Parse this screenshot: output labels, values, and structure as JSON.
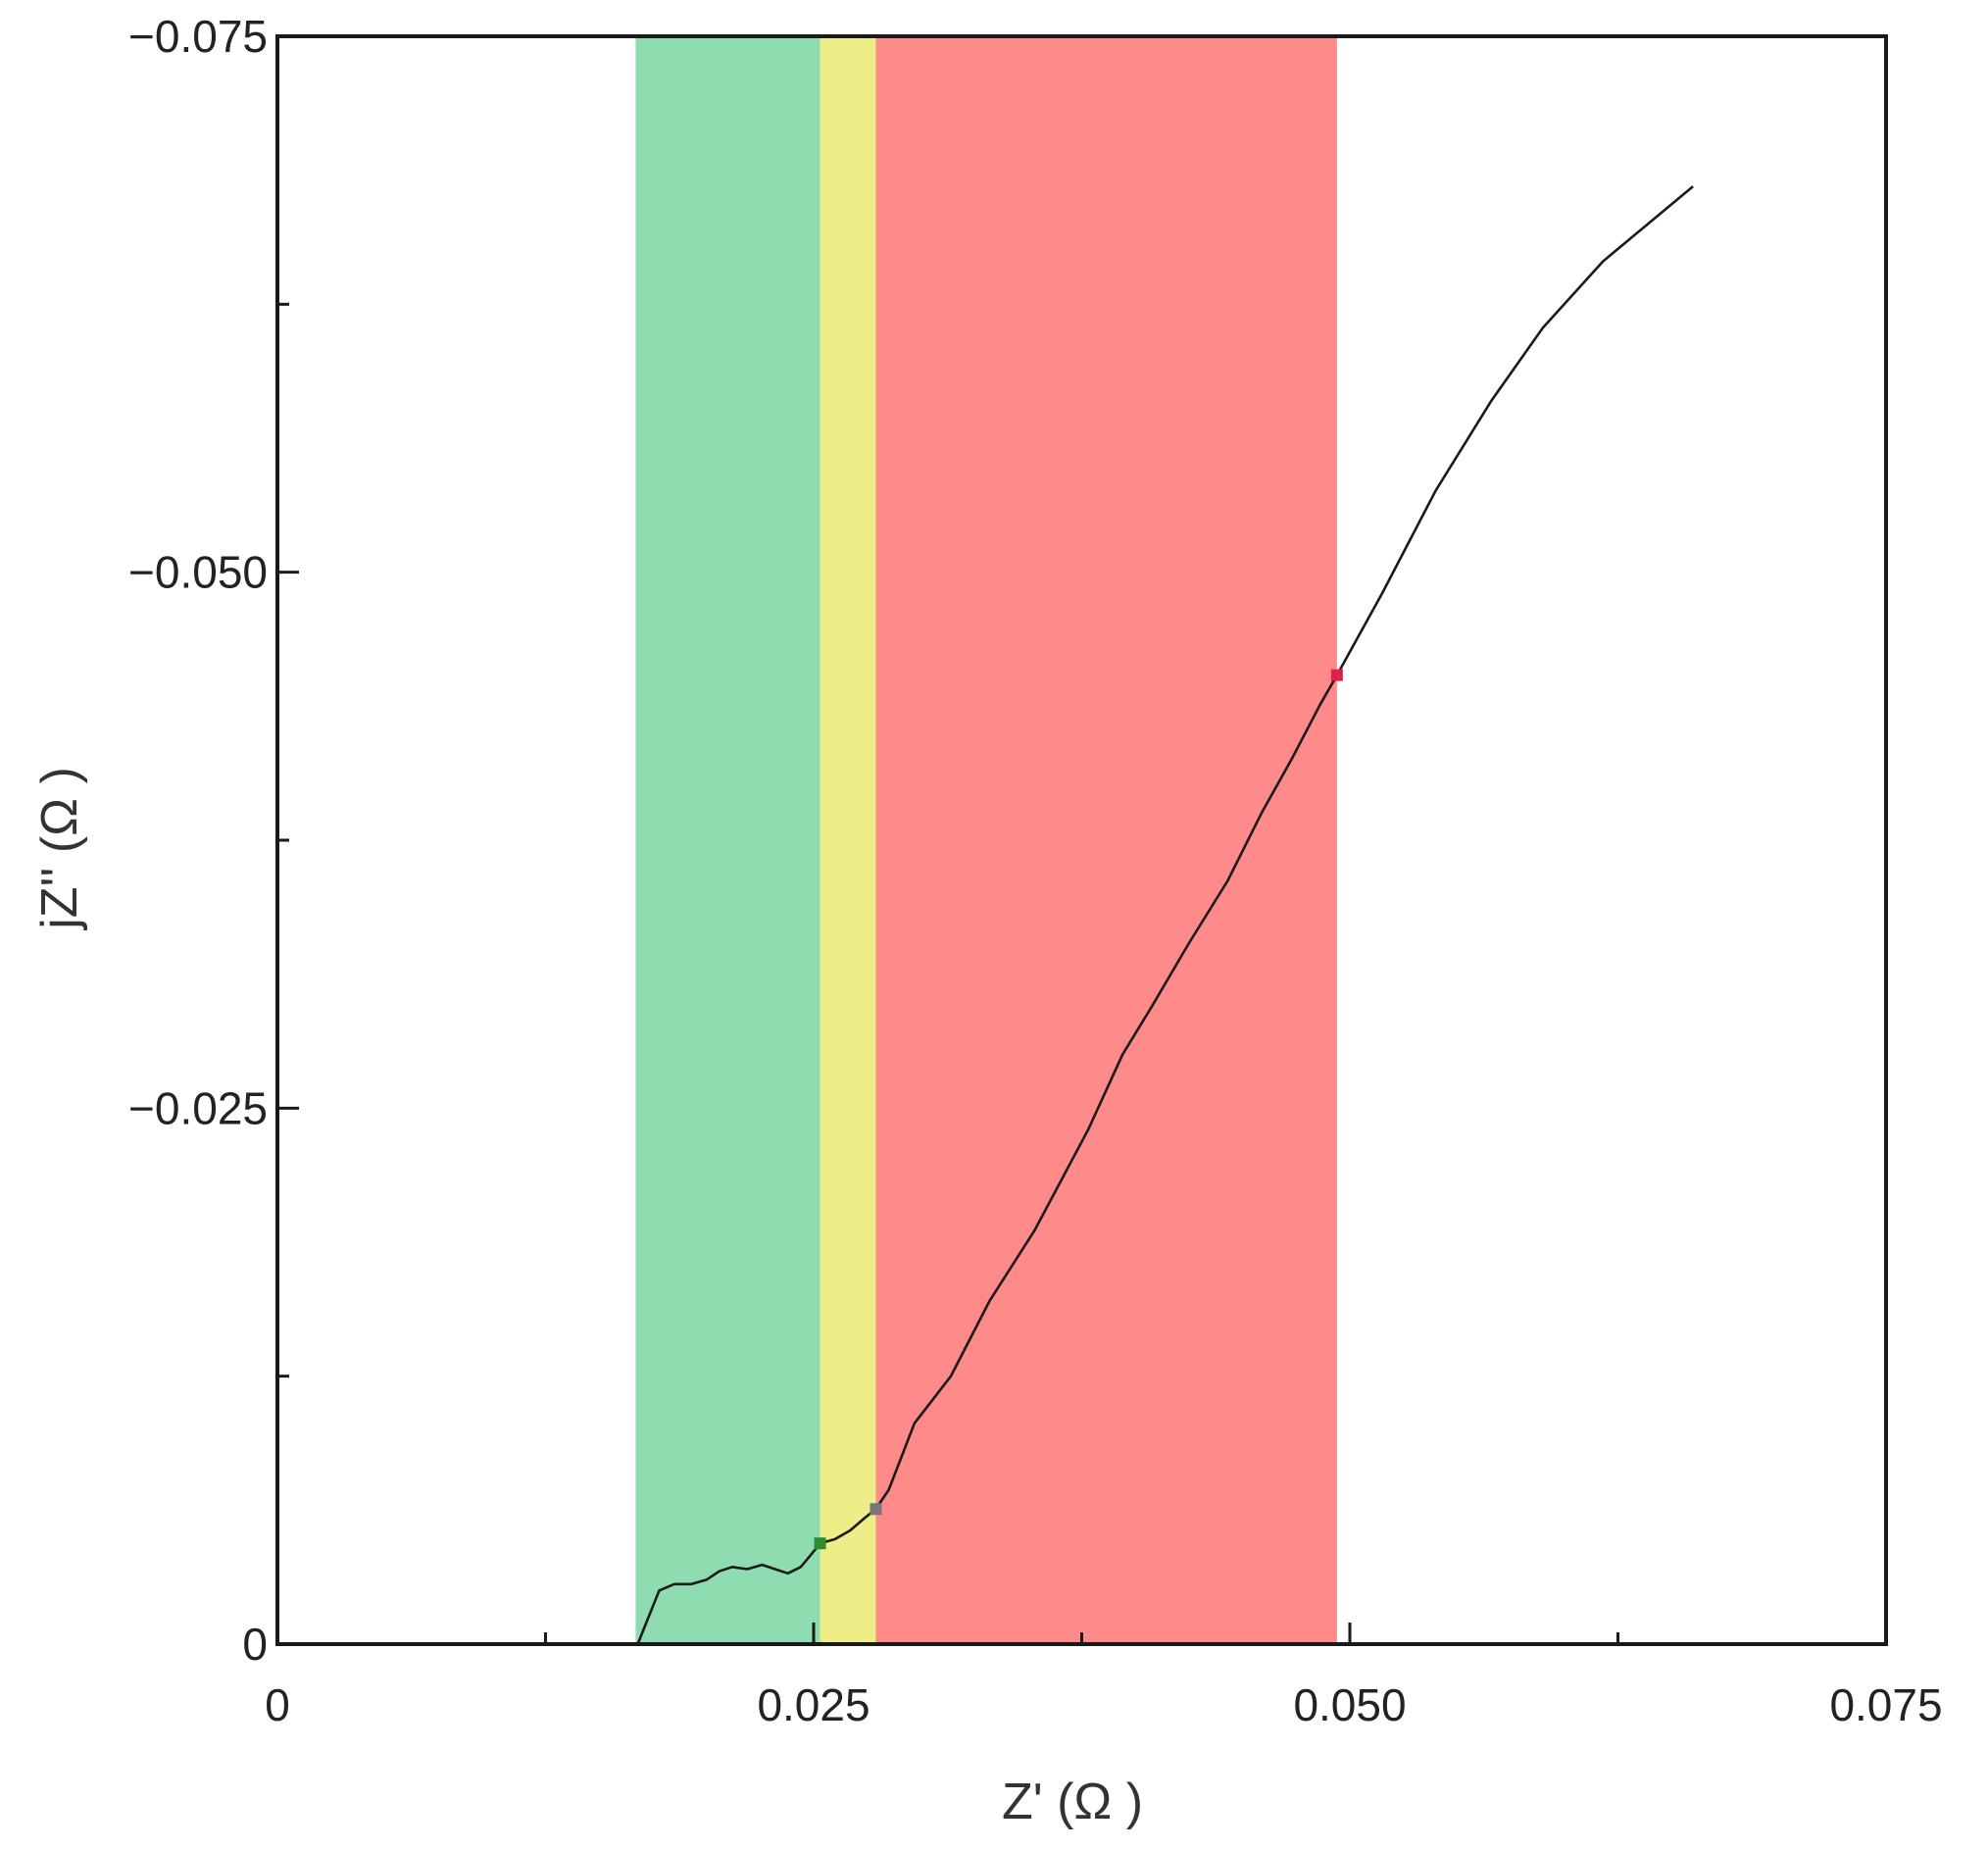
{
  "chart_data": {
    "type": "line",
    "xlabel": "Z' (Ω )",
    "ylabel": "jZ'' (Ω )",
    "xlim": [
      0,
      0.075
    ],
    "ylim": [
      0,
      -0.075
    ],
    "y_axis_inverted": true,
    "grid": false,
    "x_ticks": [
      {
        "value": 0,
        "label": "0"
      },
      {
        "value": 0.025,
        "label": "0.025"
      },
      {
        "value": 0.05,
        "label": "0.050"
      },
      {
        "value": 0.075,
        "label": "0.075"
      }
    ],
    "x_minor_ticks": [
      0.0125,
      0.0375,
      0.0625
    ],
    "y_ticks": [
      {
        "value": 0,
        "label": "0"
      },
      {
        "value": -0.025,
        "label": "−0.025"
      },
      {
        "value": -0.05,
        "label": "−0.050"
      },
      {
        "value": -0.075,
        "label": "−0.075"
      }
    ],
    "y_minor_ticks": [
      -0.0125,
      -0.0375,
      -0.0625
    ],
    "regions": [
      {
        "x_start": 0.0167,
        "x_end": 0.0253,
        "color": "#8fdcb0"
      },
      {
        "x_start": 0.0253,
        "x_end": 0.0279,
        "color": "#eeee88"
      },
      {
        "x_start": 0.0279,
        "x_end": 0.0494,
        "color": "#ff8a8a"
      }
    ],
    "series": [
      {
        "color": "#1a1a1a",
        "x": [
          0.0168,
          0.0172,
          0.0178,
          0.0185,
          0.0193,
          0.02,
          0.0206,
          0.0212,
          0.0219,
          0.0226,
          0.0232,
          0.0238,
          0.0244,
          0.0249,
          0.0253,
          0.026,
          0.0267,
          0.0274,
          0.0279,
          0.0285,
          0.0292,
          0.0297,
          0.0314,
          0.0332,
          0.0353,
          0.0378,
          0.0394,
          0.0408,
          0.0425,
          0.0443,
          0.0459,
          0.0473,
          0.0486,
          0.0494,
          0.0515,
          0.054,
          0.0566,
          0.059,
          0.0618,
          0.066
        ],
        "y": [
          0,
          -0.001,
          -0.0025,
          -0.0028,
          -0.0028,
          -0.003,
          -0.0034,
          -0.0036,
          -0.0035,
          -0.0037,
          -0.0035,
          -0.0033,
          -0.0036,
          -0.0042,
          -0.0047,
          -0.0049,
          -0.0053,
          -0.0059,
          -0.0063,
          -0.0072,
          -0.009,
          -0.0103,
          -0.0125,
          -0.016,
          -0.0193,
          -0.024,
          -0.0275,
          -0.0298,
          -0.0327,
          -0.0356,
          -0.0388,
          -0.0413,
          -0.0438,
          -0.0452,
          -0.049,
          -0.0538,
          -0.058,
          -0.0614,
          -0.0645,
          -0.068
        ]
      }
    ],
    "markers": [
      {
        "x": 0.0253,
        "y": -0.0047,
        "color": "#2e8b2e"
      },
      {
        "x": 0.0279,
        "y": -0.0063,
        "color": "#777777"
      },
      {
        "x": 0.0494,
        "y": -0.0452,
        "color": "#e0204a"
      }
    ]
  }
}
